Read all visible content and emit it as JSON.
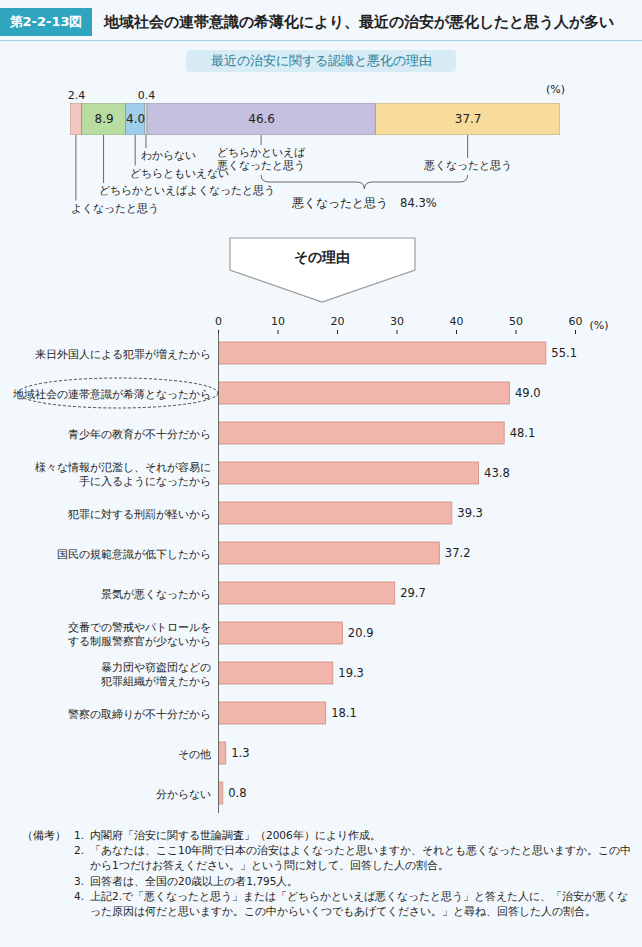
{
  "figure_label": "第2-2-13図",
  "title": "地域社会の連帯意識の希薄化により、最近の治安が悪化したと思う人が多い",
  "chart_data": [
    {
      "type": "bar",
      "orientation": "horizontal",
      "stacked": true,
      "title": "最近の治安に関する認識と悪化の理由",
      "x_label": "(%)",
      "xlim": [
        0,
        100
      ],
      "tick_labels": false,
      "data_labels": true,
      "series": [
        {
          "name": "よくなったと思う",
          "color": "#f4c6bd",
          "values": [
            2.4
          ]
        },
        {
          "name": "どちらかといえばよくなったと思う",
          "color": "#b9dca0",
          "values": [
            8.9
          ]
        },
        {
          "name": "どちらともいえない",
          "color": "#9fcdea",
          "values": [
            4.0
          ],
          "value_labels": [
            "4.0"
          ]
        },
        {
          "name": "わからない",
          "color": "#ffffff",
          "values": [
            0.4
          ]
        },
        {
          "name": "どちらかといえば\n悪くなったと思う",
          "color": "#c5bfe0",
          "values": [
            46.6
          ]
        },
        {
          "name": "悪くなったと思う",
          "color": "#f7dc9c",
          "values": [
            37.7
          ]
        }
      ],
      "annotations": [
        {
          "text": "悪くなったと思う　84.3%"
        }
      ]
    },
    {
      "type": "bar",
      "orientation": "horizontal",
      "title": "その理由",
      "x_label": "(%)",
      "categories": [
        "来日外国人による犯罪が増えたから",
        "地域社会の連帯意識が希薄となったから",
        "青少年の教育が不十分だから",
        "様々な情報が氾濫し、それが容易に\n手に入るようになったから",
        "犯罪に対する刑罰が軽いから",
        "国民の規範意識が低下したから",
        "景気が悪くなったから",
        "交番での警戒やパトロールを\nする制服警察官が少ないから",
        "暴力団や窃盗団などの\n犯罪組織が増えたから",
        "警察の取締りが不十分だから",
        "その他",
        "分からない"
      ],
      "values": [
        55.1,
        49.0,
        48.1,
        43.8,
        39.3,
        37.2,
        29.7,
        20.9,
        19.3,
        18.1,
        1.3,
        0.8
      ],
      "value_labels": [
        "55.1",
        "49.0",
        "48.1",
        "43.8",
        "39.3",
        "37.2",
        "29.7",
        "20.9",
        "19.3",
        "18.1",
        "1.3",
        "0.8"
      ],
      "color": "#f2b5aa",
      "xlim": [
        0,
        60
      ],
      "xticks": [
        0,
        10,
        20,
        30,
        40,
        50,
        60
      ],
      "data_labels": true
    }
  ],
  "notes": {
    "label": "（備考）",
    "items": [
      {
        "number": "1.",
        "text": "内閣府「治安に関する世論調査」（2006年）により作成。"
      },
      {
        "number": "2.",
        "text": "「あなたは、ここ10年間で日本の治安はよくなったと思いますか、それとも悪くなったと思いますか。この中から1つだけお答えください。」という問に対して、回答した人の割合。"
      },
      {
        "number": "3.",
        "text": "回答者は、全国の20歳以上の者1,795人。"
      },
      {
        "number": "4.",
        "text": "上記2.で「悪くなったと思う」または「どちらかといえば悪くなったと思う」と答えた人に、「治安が悪くなった原因は何だと思いますか。この中からいくつでもあげてください。」と尋ね、回答した人の割合。"
      }
    ]
  }
}
